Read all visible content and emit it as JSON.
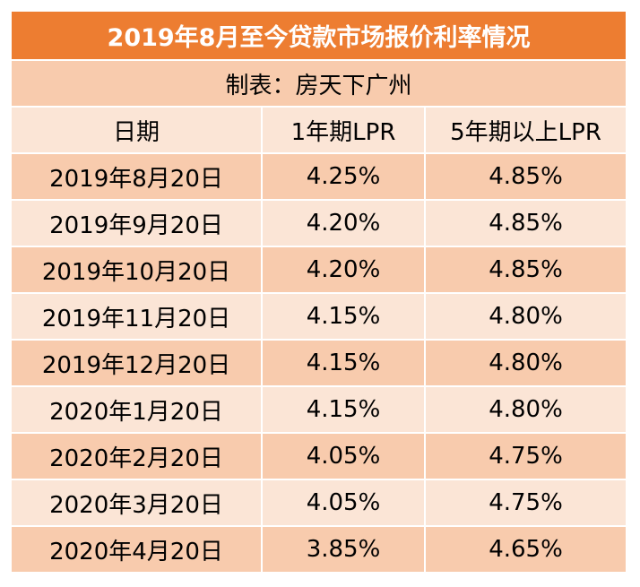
{
  "title": "2019年8月至今贷款市场报价利率情况",
  "source": "制表：房天下广州",
  "columns": [
    "日期",
    "1年期LPR",
    "5年期以上LPR"
  ],
  "rows": [
    [
      "2019年8月20日",
      "4.25%",
      "4.85%"
    ],
    [
      "2019年9月20日",
      "4.20%",
      "4.85%"
    ],
    [
      "2019年10月20日",
      "4.20%",
      "4.85%"
    ],
    [
      "2019年11月20日",
      "4.15%",
      "4.80%"
    ],
    [
      "2019年12月20日",
      "4.15%",
      "4.80%"
    ],
    [
      "2020年1月20日",
      "4.15%",
      "4.80%"
    ],
    [
      "2020年2月20日",
      "4.05%",
      "4.75%"
    ],
    [
      "2020年3月20日",
      "4.05%",
      "4.75%"
    ],
    [
      "2020年4月20日",
      "3.85%",
      "4.65%"
    ]
  ],
  "colors": {
    "title_bg": "#ed7d31",
    "dark_row": "#f8cbad",
    "light_row": "#fbe5d6"
  }
}
